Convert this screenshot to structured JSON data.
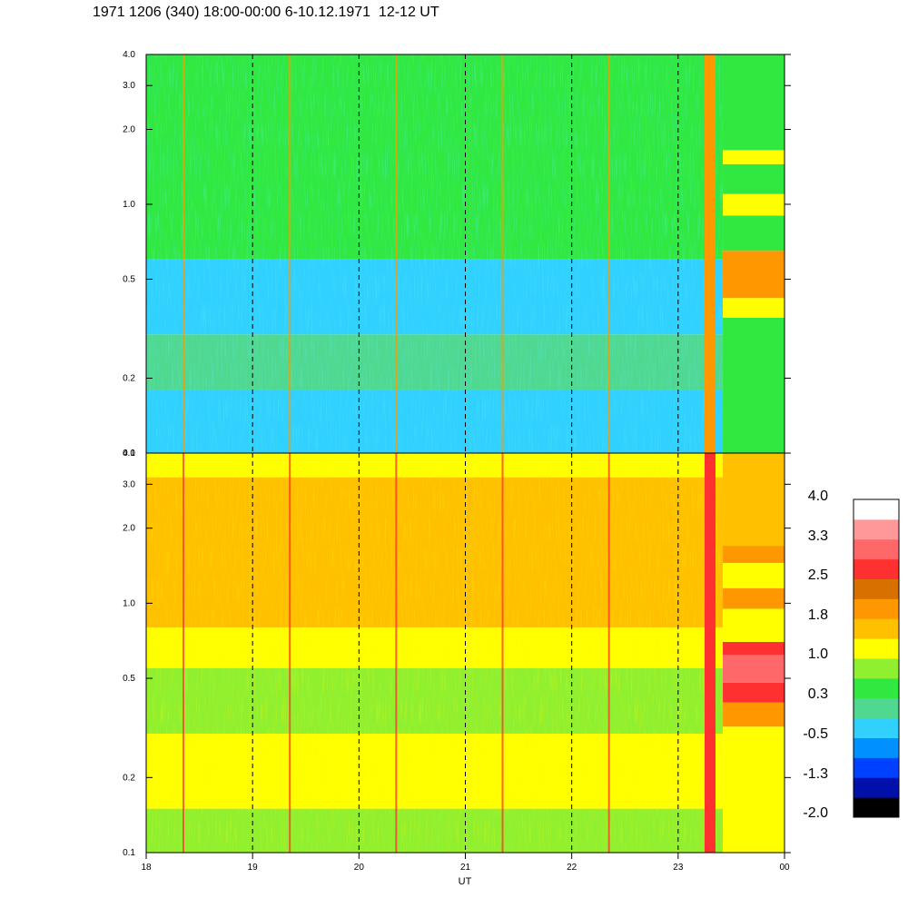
{
  "title": "1971 1206 (340) 18:00-00:00 6-10.12.1971  12-12 UT",
  "chart_data": {
    "type": "heatmap",
    "xlabel": "UT",
    "x_ticks": [
      "18",
      "19",
      "20",
      "21",
      "22",
      "23",
      "00"
    ],
    "x_range": [
      18,
      24
    ],
    "dashed_gridlines_x": [
      19,
      20,
      21,
      22,
      23
    ],
    "panels": [
      {
        "id": "upper",
        "y_scale": "log",
        "y_range": [
          0.1,
          4.0
        ],
        "y_ticks": [
          "0.1",
          "0.2",
          "0.5",
          "1.0",
          "2.0",
          "3.0",
          "4.0"
        ],
        "y_tick_values": [
          0.1,
          0.2,
          0.5,
          1.0,
          2.0,
          3.0,
          4.0
        ],
        "bands": [
          {
            "y_from": 0.1,
            "y_to": 0.18,
            "value": -0.5
          },
          {
            "y_from": 0.18,
            "y_to": 0.3,
            "value": -0.1
          },
          {
            "y_from": 0.3,
            "y_to": 0.6,
            "value": -0.3
          },
          {
            "y_from": 0.6,
            "y_to": 0.9,
            "value": 0.5
          },
          {
            "y_from": 0.9,
            "y_to": 2.0,
            "value": 0.3
          },
          {
            "y_from": 2.0,
            "y_to": 4.0,
            "value": 0.6
          }
        ],
        "late_event": {
          "x_from": 23.42,
          "x_to": 24.0,
          "bands": [
            {
              "y_from": 0.1,
              "y_to": 0.35,
              "value": 0.5
            },
            {
              "y_from": 0.35,
              "y_to": 0.42,
              "value": 1.2
            },
            {
              "y_from": 0.42,
              "y_to": 0.65,
              "value": 2.0
            },
            {
              "y_from": 0.65,
              "y_to": 0.9,
              "value": 0.6
            },
            {
              "y_from": 0.9,
              "y_to": 1.1,
              "value": 1.1
            },
            {
              "y_from": 1.1,
              "y_to": 1.45,
              "value": 0.4
            },
            {
              "y_from": 1.45,
              "y_to": 1.65,
              "value": 1.1
            },
            {
              "y_from": 1.65,
              "y_to": 4.0,
              "value": 0.5
            }
          ]
        }
      },
      {
        "id": "lower",
        "y_scale": "log",
        "y_range": [
          0.1,
          4.0
        ],
        "y_ticks": [
          "0.1",
          "0.2",
          "0.5",
          "1.0",
          "2.0",
          "3.0",
          "4.0"
        ],
        "y_tick_values": [
          0.1,
          0.2,
          0.5,
          1.0,
          2.0,
          3.0,
          4.0
        ],
        "bands": [
          {
            "y_from": 0.1,
            "y_to": 0.15,
            "value": 0.9
          },
          {
            "y_from": 0.15,
            "y_to": 0.3,
            "value": 1.1
          },
          {
            "y_from": 0.3,
            "y_to": 0.55,
            "value": 0.9
          },
          {
            "y_from": 0.55,
            "y_to": 0.8,
            "value": 1.3
          },
          {
            "y_from": 0.8,
            "y_to": 3.2,
            "value": 1.7
          },
          {
            "y_from": 3.2,
            "y_to": 4.0,
            "value": 1.0
          }
        ],
        "late_event": {
          "x_from": 23.42,
          "x_to": 24.0,
          "bands": [
            {
              "y_from": 0.1,
              "y_to": 0.32,
              "value": 1.0
            },
            {
              "y_from": 0.32,
              "y_to": 0.4,
              "value": 2.0
            },
            {
              "y_from": 0.4,
              "y_to": 0.48,
              "value": 2.7
            },
            {
              "y_from": 0.48,
              "y_to": 0.62,
              "value": 3.2
            },
            {
              "y_from": 0.62,
              "y_to": 0.7,
              "value": 2.6
            },
            {
              "y_from": 0.7,
              "y_to": 0.95,
              "value": 1.1
            },
            {
              "y_from": 0.95,
              "y_to": 1.15,
              "value": 1.9
            },
            {
              "y_from": 1.15,
              "y_to": 1.45,
              "value": 1.2
            },
            {
              "y_from": 1.45,
              "y_to": 1.7,
              "value": 1.9
            },
            {
              "y_from": 1.7,
              "y_to": 4.0,
              "value": 1.6
            }
          ]
        }
      }
    ],
    "spikes_x": [
      18.35,
      19.35,
      20.35,
      21.35,
      22.35,
      23.3
    ],
    "colorbar": {
      "labels": [
        "4.0",
        "3.3",
        "2.5",
        "1.8",
        "1.0",
        "0.3",
        "-0.5",
        "-1.3",
        "-2.0"
      ],
      "min": -2.0,
      "max": 4.0,
      "colors": [
        "#000000",
        "#0010a8",
        "#0040ff",
        "#0090ff",
        "#30d0ff",
        "#50d890",
        "#30e840",
        "#90f030",
        "#ffff00",
        "#ffc000",
        "#ff9800",
        "#d87000",
        "#ff3030",
        "#ff6868",
        "#ff9898",
        "#ffffff"
      ]
    }
  }
}
